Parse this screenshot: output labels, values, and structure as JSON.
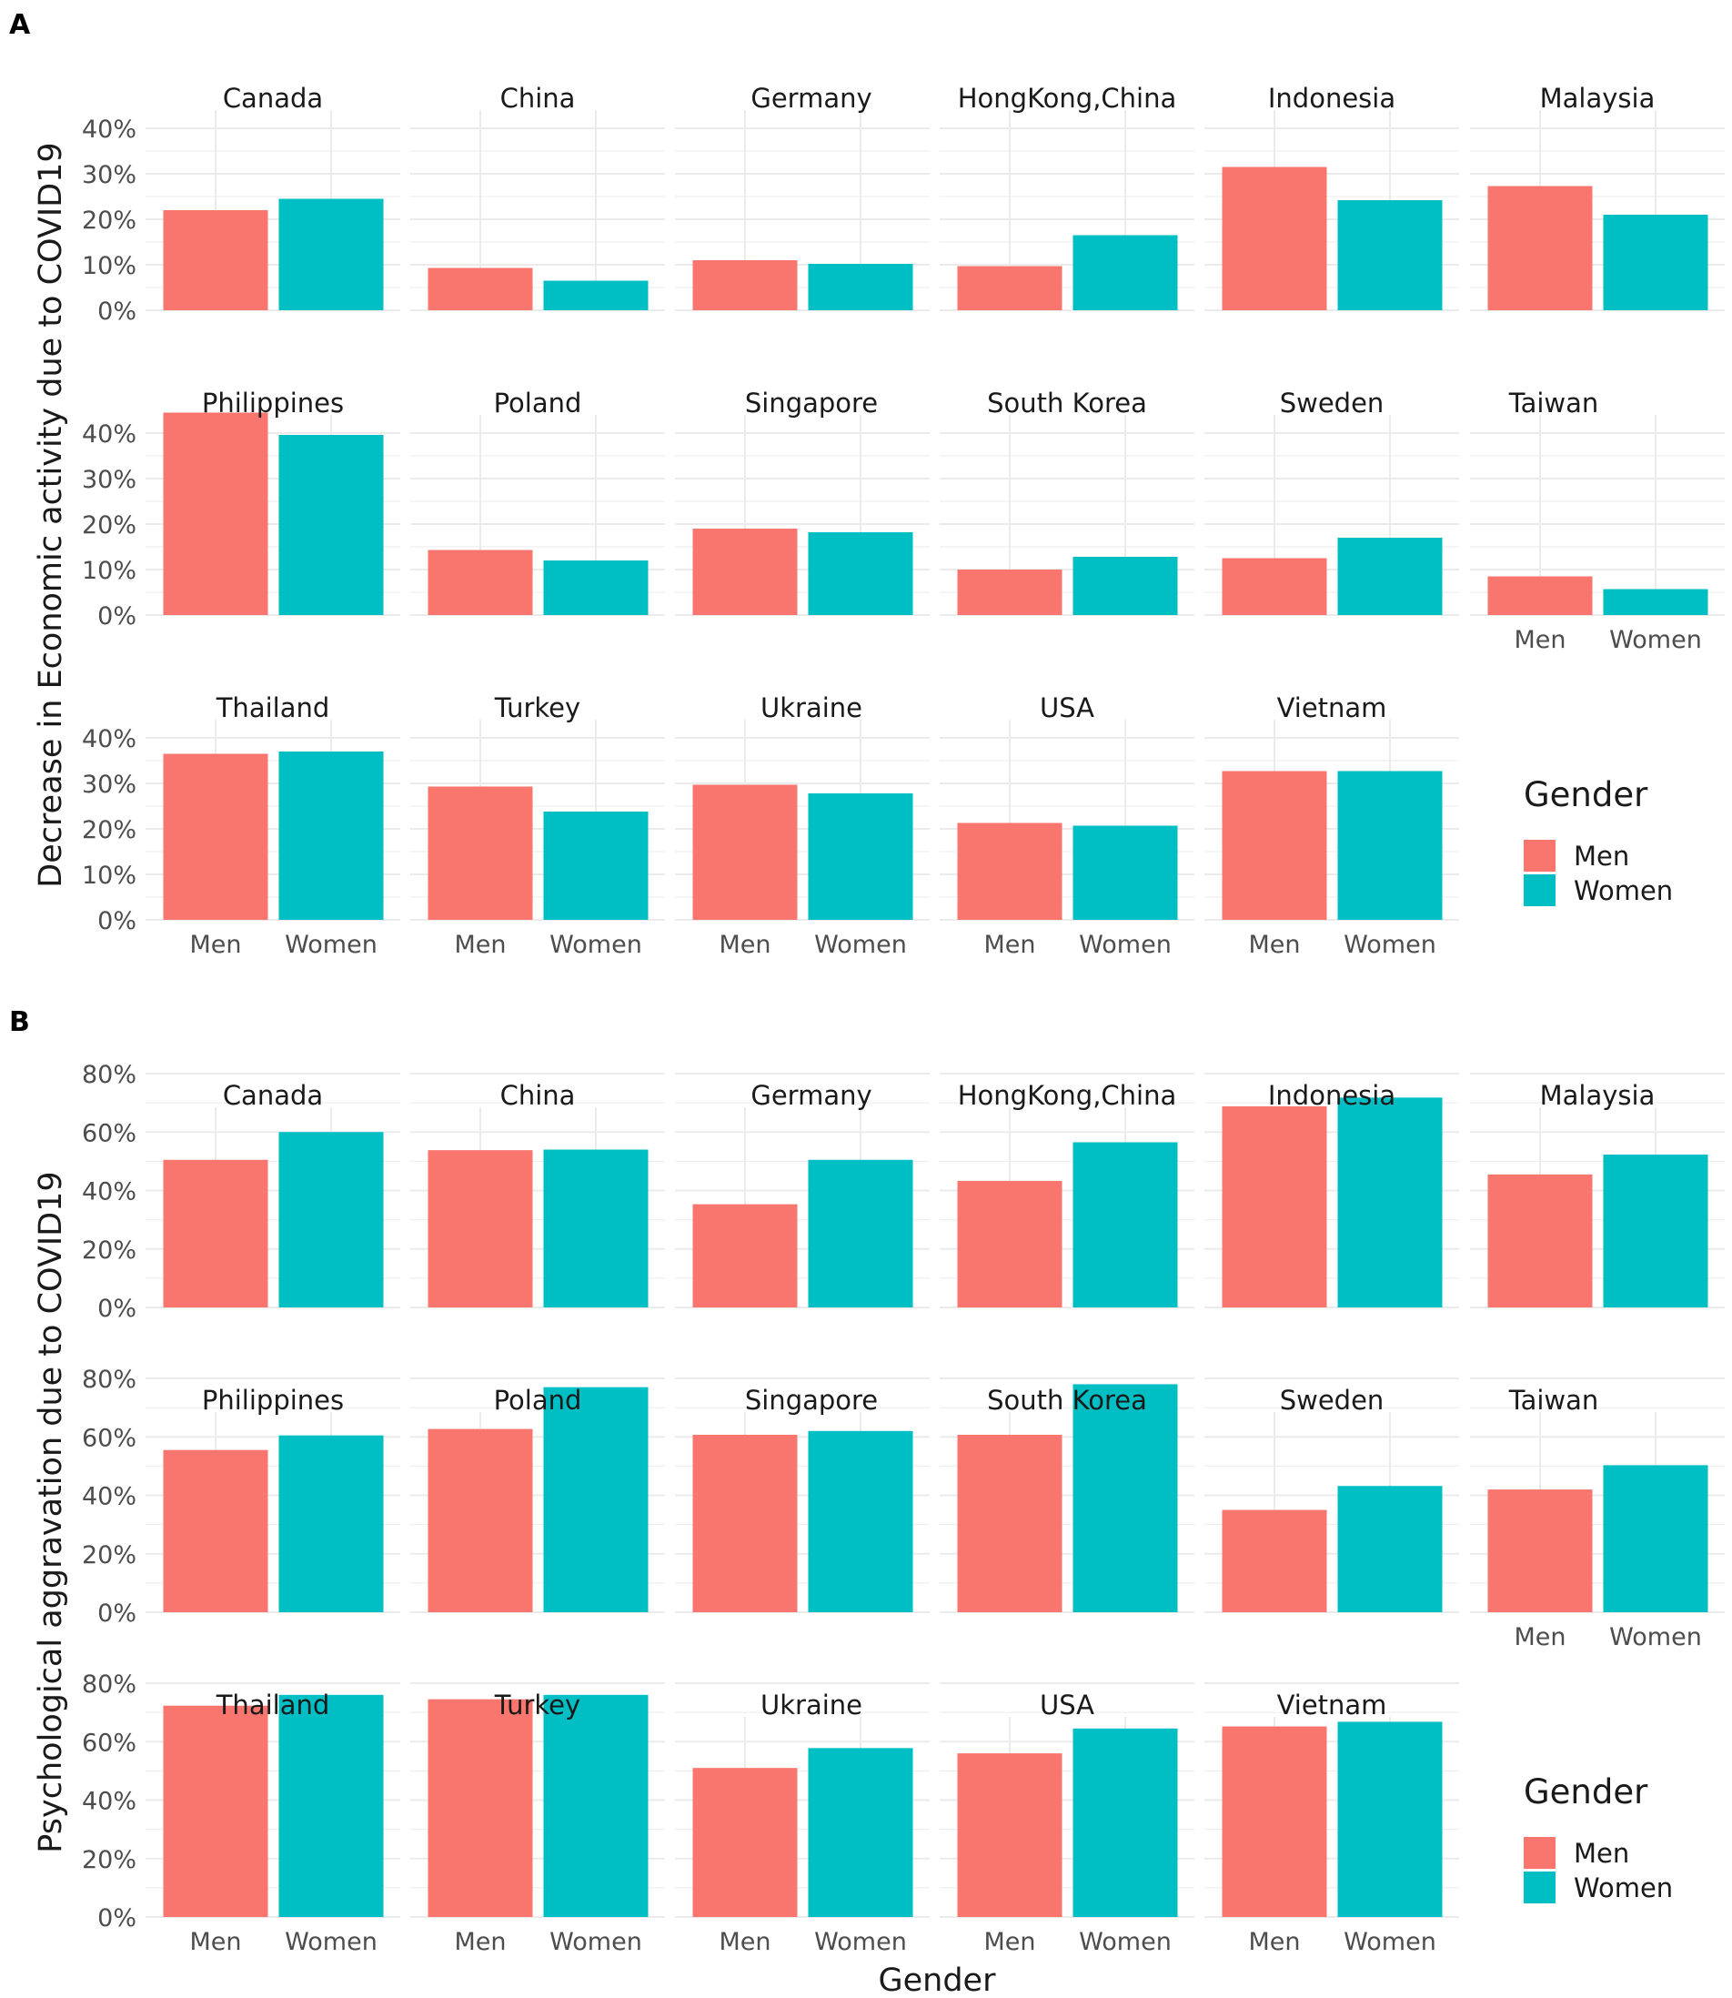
{
  "colors": {
    "men": "#F8766D",
    "women": "#00BFC4",
    "grid": "#EBEBEB",
    "tick": "#4D4D4D",
    "text": "#1A1A1A"
  },
  "chart_data": [
    {
      "panel_label": "A",
      "type": "bar",
      "ylabel": "Decrease in Economic activity due to COVID19",
      "ylim": [
        0,
        0.45
      ],
      "yticks": [
        0,
        0.1,
        0.2,
        0.3,
        0.4
      ],
      "ytick_labels": [
        "0%",
        "10%",
        "20%",
        "30%",
        "40%"
      ],
      "categories": [
        "Men",
        "Women"
      ],
      "legend": {
        "title": "Gender",
        "entries": [
          "Men",
          "Women"
        ],
        "position": "right"
      },
      "facets": [
        {
          "name": "Canada",
          "values": [
            0.22,
            0.245
          ]
        },
        {
          "name": "China",
          "values": [
            0.093,
            0.065
          ]
        },
        {
          "name": "Germany",
          "values": [
            0.11,
            0.102
          ]
        },
        {
          "name": "HongKong,China",
          "values": [
            0.097,
            0.165
          ]
        },
        {
          "name": "Indonesia",
          "values": [
            0.315,
            0.242
          ]
        },
        {
          "name": "Malaysia",
          "values": [
            0.273,
            0.21
          ]
        },
        {
          "name": "Philippines",
          "values": [
            0.445,
            0.396
          ]
        },
        {
          "name": "Poland",
          "values": [
            0.143,
            0.12
          ]
        },
        {
          "name": "Singapore",
          "values": [
            0.19,
            0.182
          ]
        },
        {
          "name": "South Korea",
          "values": [
            0.1,
            0.128
          ]
        },
        {
          "name": "Sweden",
          "values": [
            0.125,
            0.17
          ]
        },
        {
          "name": "Taiwan",
          "values": [
            0.085,
            0.057
          ]
        },
        {
          "name": "Thailand",
          "values": [
            0.365,
            0.37
          ]
        },
        {
          "name": "Turkey",
          "values": [
            0.293,
            0.238
          ]
        },
        {
          "name": "Ukraine",
          "values": [
            0.297,
            0.278
          ]
        },
        {
          "name": "USA",
          "values": [
            0.213,
            0.207
          ]
        },
        {
          "name": "Vietnam",
          "values": [
            0.327,
            0.327
          ]
        }
      ]
    },
    {
      "panel_label": "B",
      "type": "bar",
      "ylabel": "Psychological aggravation due to COVID19",
      "xlabel": "Gender",
      "ylim": [
        0,
        0.8
      ],
      "yticks": [
        0,
        0.2,
        0.4,
        0.6,
        0.8
      ],
      "ytick_labels": [
        "0%",
        "20%",
        "40%",
        "60%",
        "80%"
      ],
      "categories": [
        "Men",
        "Women"
      ],
      "legend": {
        "title": "Gender",
        "entries": [
          "Men",
          "Women"
        ],
        "position": "right"
      },
      "facets": [
        {
          "name": "Canada",
          "values": [
            0.505,
            0.6
          ]
        },
        {
          "name": "China",
          "values": [
            0.538,
            0.54
          ]
        },
        {
          "name": "Germany",
          "values": [
            0.353,
            0.505
          ]
        },
        {
          "name": "HongKong,China",
          "values": [
            0.433,
            0.565
          ]
        },
        {
          "name": "Indonesia",
          "values": [
            0.688,
            0.718
          ]
        },
        {
          "name": "Malaysia",
          "values": [
            0.455,
            0.523
          ]
        },
        {
          "name": "Philippines",
          "values": [
            0.555,
            0.605
          ]
        },
        {
          "name": "Poland",
          "values": [
            0.627,
            0.77
          ]
        },
        {
          "name": "Singapore",
          "values": [
            0.607,
            0.62
          ]
        },
        {
          "name": "South Korea",
          "values": [
            0.607,
            0.78
          ]
        },
        {
          "name": "Sweden",
          "values": [
            0.35,
            0.432
          ]
        },
        {
          "name": "Taiwan",
          "values": [
            0.42,
            0.503
          ]
        },
        {
          "name": "Thailand",
          "values": [
            0.723,
            0.76
          ]
        },
        {
          "name": "Turkey",
          "values": [
            0.745,
            0.76
          ]
        },
        {
          "name": "Ukraine",
          "values": [
            0.51,
            0.578
          ]
        },
        {
          "name": "USA",
          "values": [
            0.56,
            0.645
          ]
        },
        {
          "name": "Vietnam",
          "values": [
            0.652,
            0.668
          ]
        }
      ]
    }
  ]
}
